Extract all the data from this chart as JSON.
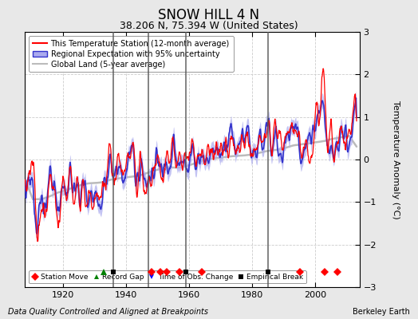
{
  "title": "SNOW HILL 4 N",
  "subtitle": "38.206 N, 75.394 W (United States)",
  "xlabel_note": "Data Quality Controlled and Aligned at Breakpoints",
  "xlabel_right": "Berkeley Earth",
  "ylabel": "Temperature Anomaly (°C)",
  "ylim": [
    -3,
    3
  ],
  "xlim": [
    1908,
    2014
  ],
  "yticks": [
    -3,
    -2,
    -1,
    0,
    1,
    2,
    3
  ],
  "xticks": [
    1920,
    1940,
    1960,
    1980,
    2000
  ],
  "background_color": "#e8e8e8",
  "plot_bg_color": "#ffffff",
  "station_line_color": "#ff0000",
  "regional_line_color": "#3333cc",
  "regional_fill_color": "#aaaaee",
  "global_land_color": "#bbbbbb",
  "grid_color": "#cccccc",
  "vline_color": "#555555",
  "station_move_years": [
    1948,
    1951,
    1953,
    1957,
    1964,
    1995,
    2003,
    2007
  ],
  "record_gap_years": [
    1933
  ],
  "time_obs_years": [],
  "empirical_break_years": [
    1936,
    1959,
    1985
  ],
  "vline_years": [
    1936,
    1947,
    1959,
    1985
  ],
  "seed": 12345
}
